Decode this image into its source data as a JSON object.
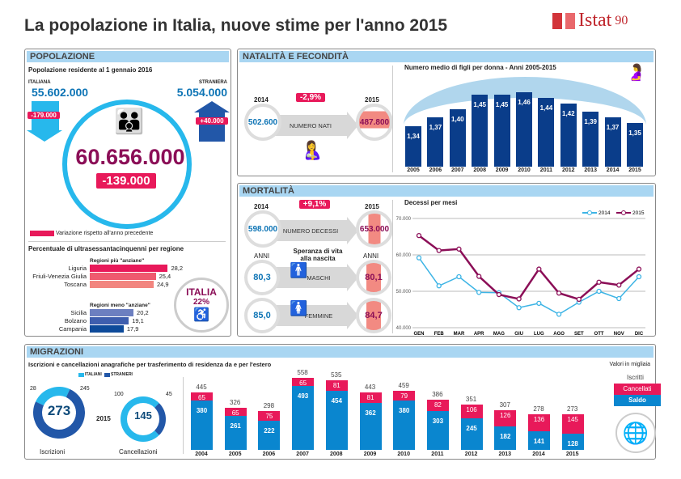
{
  "title": "La popolazione in Italia, nuove stime per l'anno 2015",
  "logo": {
    "text": "Istat",
    "suffix": "90"
  },
  "popolazione": {
    "header": "POPOLAZIONE",
    "subtitle": "Popolazione residente al 1 gennaio 2016",
    "italiana_label": "ITALIANA",
    "italiana_value": "55.602.000",
    "italiana_var": "-179.000",
    "straniera_label": "STRANIERA",
    "straniera_value": "5.054.000",
    "straniera_var": "+40.000",
    "total": "60.656.000",
    "total_var": "-139.000",
    "legend": "Variazione rispetto all'anno precedente",
    "regioni_title": "Percentuale di ultrasessantacinquenni per regione",
    "piu_label": "Regioni più \"anziane\"",
    "meno_label": "Regioni meno \"anziane\"",
    "piu": [
      {
        "name": "Liguria",
        "value": "28,2",
        "v": 28.2,
        "color": "#e8195a"
      },
      {
        "name": "Friuli-Venezia Giulia",
        "value": "25,4",
        "v": 25.4,
        "color": "#ef5a6f"
      },
      {
        "name": "Toscana",
        "value": "24,9",
        "v": 24.9,
        "color": "#f2857f"
      }
    ],
    "meno": [
      {
        "name": "Sicilia",
        "value": "20,2",
        "v": 20.2,
        "color": "#6c7fc0"
      },
      {
        "name": "Bolzano",
        "value": "19,1",
        "v": 19.1,
        "color": "#3e5eae"
      },
      {
        "name": "Campania",
        "value": "17,9",
        "v": 17.9,
        "color": "#0d4a9a"
      }
    ],
    "italia_label": "ITALIA",
    "italia_value": "22%"
  },
  "natalita": {
    "header": "NATALITÀ E FECONDITÀ",
    "year1": "2014",
    "year2": "2015",
    "value1": "502.600",
    "value2": "487.800",
    "arrow_label": "NUMERO NATI",
    "change": "-2,9%",
    "chart_data": {
      "type": "bar",
      "title": "Numero medio di figli per donna - Anni 2005-2015",
      "categories": [
        "2005",
        "2006",
        "2007",
        "2008",
        "2009",
        "2010",
        "2011",
        "2012",
        "2013",
        "2014",
        "2015"
      ],
      "values": [
        1.34,
        1.37,
        1.4,
        1.45,
        1.45,
        1.46,
        1.44,
        1.42,
        1.39,
        1.37,
        1.35
      ],
      "labels": [
        "1,34",
        "1,37",
        "1,40",
        "1,45",
        "1,45",
        "1,46",
        "1,44",
        "1,42",
        "1,39",
        "1,37",
        "1,35"
      ],
      "color": "#0a3d8a"
    }
  },
  "mortalita": {
    "header": "MORTALITÀ",
    "year1": "2014",
    "year2": "2015",
    "value1": "598.000",
    "value2": "653.000",
    "arrow_label": "NUMERO DECESSI",
    "change": "+9,1%",
    "anni": "ANNI",
    "speranza": "Speranza di vita alla nascita",
    "maschi_label": "MASCHI",
    "maschi_2014": "80,3",
    "maschi_2015": "80,1",
    "femmine_label": "FEMMINE",
    "femmine_2014": "85,0",
    "femmine_2015": "84,7",
    "chart_data": {
      "type": "line",
      "title": "Decessi per mesi",
      "categories": [
        "GEN",
        "FEB",
        "MAR",
        "APR",
        "MAG",
        "GIU",
        "LUG",
        "AGO",
        "SET",
        "OTT",
        "NOV",
        "DIC"
      ],
      "ylim": [
        40000,
        70000
      ],
      "yticks": [
        "40.000",
        "50.000",
        "60.000",
        "70.000"
      ],
      "grid": true,
      "legend": "top-right",
      "series": [
        {
          "name": "2014",
          "color": "#3db4e5",
          "values": [
            59200,
            51500,
            54000,
            49700,
            49600,
            45500,
            46700,
            43700,
            47000,
            50000,
            48000,
            54000
          ]
        },
        {
          "name": "2015",
          "color": "#8b0e57",
          "values": [
            65300,
            61200,
            61600,
            54100,
            49100,
            47900,
            56100,
            49500,
            47800,
            52500,
            51700,
            56100
          ]
        }
      ]
    }
  },
  "migrazioni": {
    "header": "MIGRAZIONI",
    "subtitle": "Iscrizioni e cancellazioni anagrafiche per trasferimento di residenza da e per l'estero",
    "units": "Valori in migliaia",
    "legend_italiani": "ITALIANI",
    "legend_stranieri": "STRANIERI",
    "iscrizioni": {
      "label": "Iscrizioni",
      "total": "273",
      "italiani": "28",
      "stranieri": "245"
    },
    "cancellazioni": {
      "label": "Cancellazioni",
      "total": "145",
      "italiani": "100",
      "stranieri": "45"
    },
    "year": "2015",
    "key": {
      "iscritti": "Iscritti",
      "cancellati": "Cancellati",
      "saldo": "Saldo"
    },
    "chart_data": {
      "type": "bar",
      "stacked": true,
      "categories": [
        "2004",
        "2005",
        "2006",
        "2007",
        "2008",
        "2009",
        "2010",
        "2011",
        "2012",
        "2013",
        "2014",
        "2015"
      ],
      "series": [
        {
          "name": "Saldo",
          "color": "#0a86cf",
          "values": [
            380,
            261,
            222,
            493,
            454,
            362,
            380,
            303,
            245,
            182,
            141,
            128
          ]
        },
        {
          "name": "Cancellati",
          "color": "#e8195a",
          "values": [
            65,
            65,
            75,
            65,
            81,
            81,
            79,
            82,
            106,
            126,
            136,
            145
          ]
        }
      ],
      "totals_name": "Iscritti",
      "totals": [
        445,
        326,
        298,
        558,
        535,
        443,
        459,
        386,
        351,
        307,
        278,
        273
      ]
    }
  }
}
